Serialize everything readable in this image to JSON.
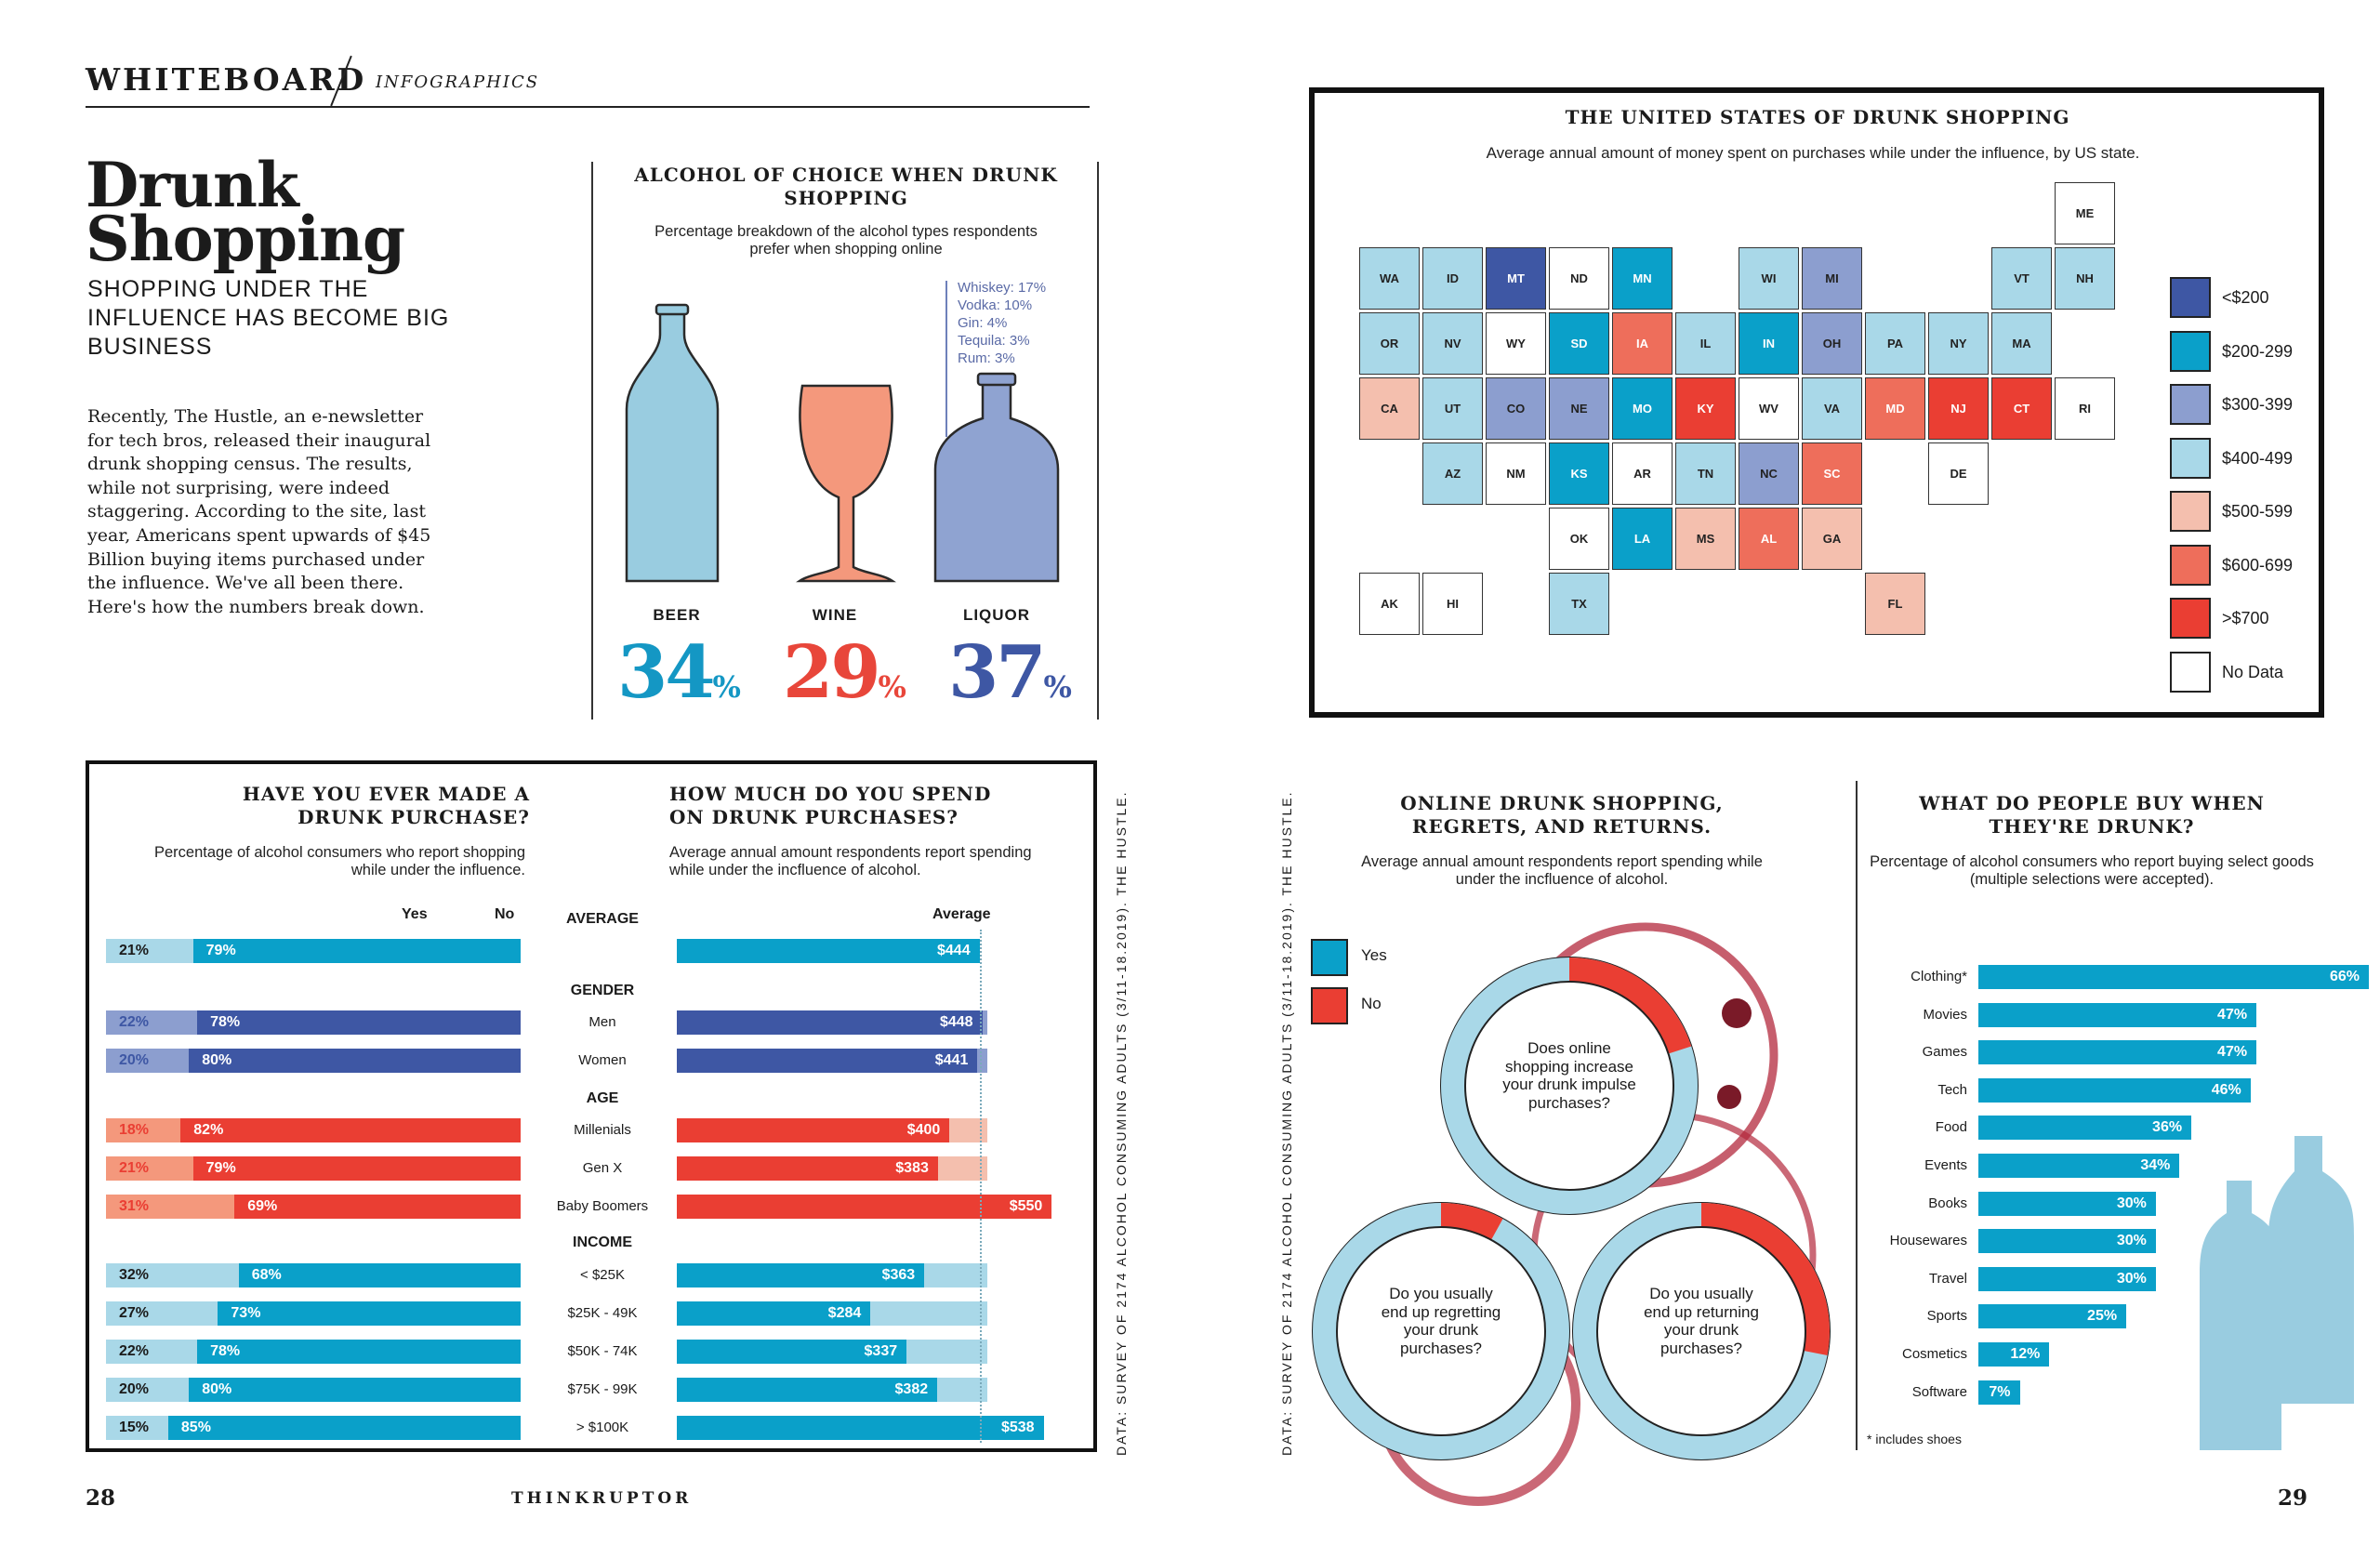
{
  "header": {
    "brand": "WHITEBOARD",
    "section": "INFOGRAPHICS"
  },
  "intro": {
    "title_line1": "Drunk",
    "title_line2": "Shopping",
    "subtitle": "SHOPPING UNDER THE INFLUENCE HAS BECOME BIG BUSINESS",
    "body": "Recently, The Hustle, an e-newsletter for tech bros, released their inaugural drunk shopping census. The results, while not surprising, were indeed staggering. According to the site, last year, Americans spent upwards of $45 Billion buying items purchased under the influence. We've all been there. Here's how the numbers break down."
  },
  "alcohol_choice": {
    "title": "ALCOHOL OF CHOICE WHEN DRUNK SHOPPING",
    "subtitle": "Percentage breakdown of the alcohol types respondents prefer when shopping online",
    "liquor_breakdown": [
      "Whiskey: 17%",
      "Vodka: 10%",
      "Gin: 4%",
      "Tequila: 3%",
      "Rum: 3%"
    ],
    "items": [
      {
        "label": "BEER",
        "value": "34",
        "color": "#1497c4"
      },
      {
        "label": "WINE",
        "value": "29",
        "color": "#e8463a"
      },
      {
        "label": "LIQUOR",
        "value": "37",
        "color": "#3e57a4"
      }
    ],
    "pct_sign": "%"
  },
  "us_map": {
    "title": "THE UNITED STATES OF DRUNK SHOPPING",
    "subtitle": "Average annual amount of money spent on purchases while under the influence, by US state.",
    "legend": [
      {
        "label": "<$200",
        "color": "#3e57a4"
      },
      {
        "label": "$200-299",
        "color": "#0aa0c9"
      },
      {
        "label": "$300-399",
        "color": "#8c9ecf"
      },
      {
        "label": "$400-499",
        "color": "#a9d8e8"
      },
      {
        "label": "$500-599",
        "color": "#f4bfae"
      },
      {
        "label": "$600-699",
        "color": "#ee6e5b"
      },
      {
        "label": ">$700",
        "color": "#ea3e33"
      },
      {
        "label": "No Data",
        "color": "#ffffff"
      }
    ],
    "states": [
      {
        "abbr": "WA",
        "bin": 3
      },
      {
        "abbr": "OR",
        "bin": 3
      },
      {
        "abbr": "CA",
        "bin": 4
      },
      {
        "abbr": "ID",
        "bin": 3
      },
      {
        "abbr": "NV",
        "bin": 3
      },
      {
        "abbr": "MT",
        "bin": 0
      },
      {
        "abbr": "WY",
        "bin": 7
      },
      {
        "abbr": "UT",
        "bin": 3
      },
      {
        "abbr": "AZ",
        "bin": 3
      },
      {
        "abbr": "CO",
        "bin": 2
      },
      {
        "abbr": "NM",
        "bin": 7
      },
      {
        "abbr": "ND",
        "bin": 7
      },
      {
        "abbr": "SD",
        "bin": 1
      },
      {
        "abbr": "NE",
        "bin": 2
      },
      {
        "abbr": "KS",
        "bin": 1
      },
      {
        "abbr": "OK",
        "bin": 7
      },
      {
        "abbr": "TX",
        "bin": 3
      },
      {
        "abbr": "MN",
        "bin": 1
      },
      {
        "abbr": "IA",
        "bin": 5
      },
      {
        "abbr": "MO",
        "bin": 1
      },
      {
        "abbr": "AR",
        "bin": 7
      },
      {
        "abbr": "LA",
        "bin": 1
      },
      {
        "abbr": "WI",
        "bin": 3
      },
      {
        "abbr": "IL",
        "bin": 3
      },
      {
        "abbr": "MI",
        "bin": 2
      },
      {
        "abbr": "IN",
        "bin": 1
      },
      {
        "abbr": "OH",
        "bin": 2
      },
      {
        "abbr": "KY",
        "bin": 6
      },
      {
        "abbr": "TN",
        "bin": 3
      },
      {
        "abbr": "MS",
        "bin": 4
      },
      {
        "abbr": "AL",
        "bin": 5
      },
      {
        "abbr": "GA",
        "bin": 4
      },
      {
        "abbr": "FL",
        "bin": 4
      },
      {
        "abbr": "SC",
        "bin": 5
      },
      {
        "abbr": "NC",
        "bin": 2
      },
      {
        "abbr": "VA",
        "bin": 3
      },
      {
        "abbr": "WV",
        "bin": 7
      },
      {
        "abbr": "PA",
        "bin": 3
      },
      {
        "abbr": "NY",
        "bin": 3
      },
      {
        "abbr": "NJ",
        "bin": 6
      },
      {
        "abbr": "VT",
        "bin": 3
      },
      {
        "abbr": "NH",
        "bin": 3
      },
      {
        "abbr": "ME",
        "bin": 7
      },
      {
        "abbr": "MA",
        "bin": 3
      },
      {
        "abbr": "CT",
        "bin": 6
      },
      {
        "abbr": "RI",
        "bin": 7
      },
      {
        "abbr": "DE",
        "bin": 7
      },
      {
        "abbr": "MD",
        "bin": 5
      },
      {
        "abbr": "AK",
        "bin": 7
      },
      {
        "abbr": "HI",
        "bin": 7
      }
    ]
  },
  "made_purchase": {
    "title": "HAVE YOU EVER MADE A DRUNK PURCHASE?",
    "subtitle": "Percentage of alcohol consumers who report shopping while under the influence.",
    "yes_label": "Yes",
    "no_label": "No"
  },
  "spend": {
    "title": "HOW MUCH DO YOU SPEND ON DRUNK PURCHASES?",
    "subtitle": "Average annual amount respondents report spending while under the incfluence of alcohol.",
    "average_label": "Average"
  },
  "chart_data": [
    {
      "type": "bar",
      "title": "HAVE YOU EVER MADE A DRUNK PURCHASE?",
      "series": [
        {
          "name": "Yes"
        },
        {
          "name": "No"
        }
      ],
      "groups": [
        {
          "head": "AVERAGE",
          "rows": [
            {
              "label": "",
              "yes": 21,
              "no": 79
            }
          ]
        },
        {
          "head": "GENDER",
          "rows": [
            {
              "label": "Men",
              "yes": 22,
              "no": 78
            },
            {
              "label": "Women",
              "yes": 20,
              "no": 80
            }
          ]
        },
        {
          "head": "AGE",
          "rows": [
            {
              "label": "Millenials",
              "yes": 18,
              "no": 82
            },
            {
              "label": "Gen X",
              "yes": 21,
              "no": 79
            },
            {
              "label": "Baby Boomers",
              "yes": 31,
              "no": 69
            }
          ]
        },
        {
          "head": "INCOME",
          "rows": [
            {
              "label": "< $25K",
              "yes": 32,
              "no": 68
            },
            {
              "label": "$25K - 49K",
              "yes": 27,
              "no": 73
            },
            {
              "label": "$50K - 74K",
              "yes": 22,
              "no": 78
            },
            {
              "label": "$75K - 99K",
              "yes": 20,
              "no": 80
            },
            {
              "label": "> $100K",
              "yes": 15,
              "no": 85
            }
          ]
        }
      ]
    },
    {
      "type": "bar",
      "title": "HOW MUCH DO YOU SPEND ON DRUNK PURCHASES?",
      "average": 444,
      "xlim": [
        0,
        600
      ],
      "values": [
        444,
        448,
        441,
        400,
        383,
        550,
        363,
        284,
        337,
        382,
        538
      ],
      "labels": [
        "$444",
        "$448",
        "$441",
        "$400",
        "$383",
        "$550",
        "$363",
        "$284",
        "$337",
        "$382",
        "$538"
      ]
    },
    {
      "type": "pie",
      "title": "ONLINE DRUNK SHOPPING, REGRETS, AND RETURNS.",
      "subtitle": "Average annual amount respondents report spending while under the incfluence of alcohol.",
      "series": [
        {
          "name": "Yes"
        },
        {
          "name": "No"
        }
      ],
      "donuts": [
        {
          "question": "Does online shopping increase your drunk impulse purchases?",
          "yes": 80,
          "no": 20
        },
        {
          "question": "Do you usually end up regretting your drunk purchases?",
          "yes": 92,
          "no": 8
        },
        {
          "question": "Do you usually end up returning your drunk purchases?",
          "yes": 72,
          "no": 28
        }
      ]
    },
    {
      "type": "bar",
      "title": "WHAT DO PEOPLE BUY WHEN THEY'RE DRUNK?",
      "subtitle": "Percentage of alcohol consumers who report buying select goods (multiple selections were accepted).",
      "categories": [
        "Clothing*",
        "Movies",
        "Games",
        "Tech",
        "Food",
        "Events",
        "Books",
        "Housewares",
        "Travel",
        "Sports",
        "Cosmetics",
        "Software"
      ],
      "values": [
        66,
        47,
        47,
        46,
        36,
        34,
        30,
        30,
        30,
        25,
        12,
        7
      ],
      "note": "* includes shoes"
    }
  ],
  "sources": {
    "left": "DATA: SURVEY OF 2174 ALCOHOL CONSUMING ADULTS (3/11-18.2019). THE HUSTLE.",
    "right": "DATA: SURVEY OF 2174 ALCOHOL CONSUMING ADULTS (3/11-18.2019). THE HUSTLE."
  },
  "footer": {
    "page_left": "28",
    "publication": "THINKRUPTOR",
    "page_right": "29"
  }
}
